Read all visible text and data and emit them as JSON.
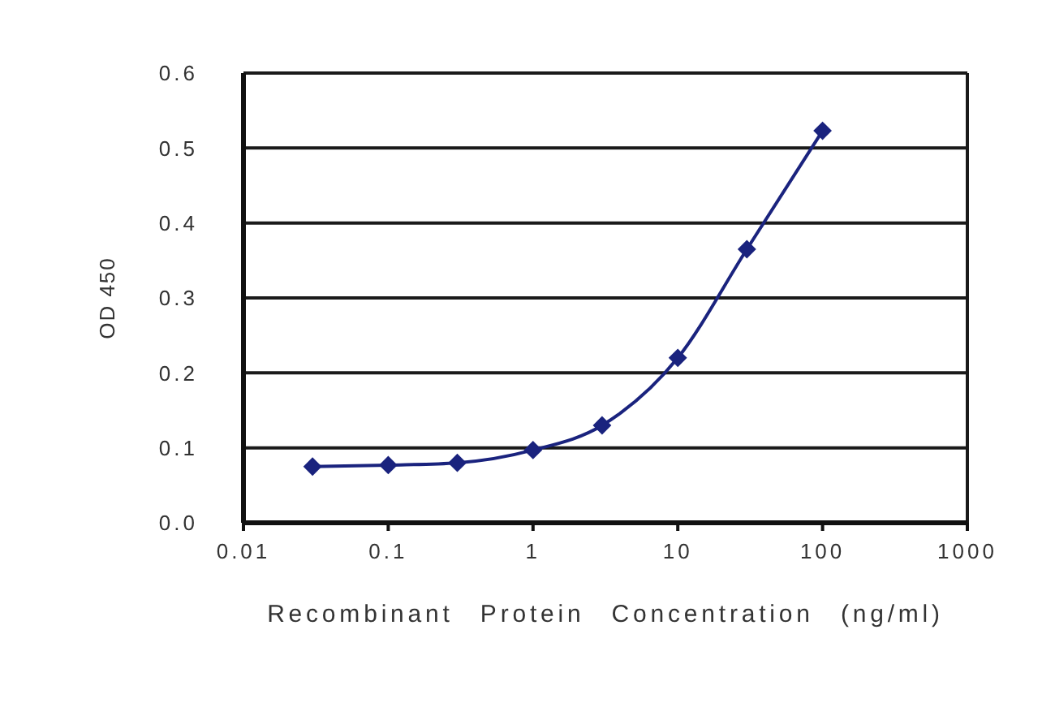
{
  "chart_data": {
    "type": "line",
    "xlabel": "Recombinant Protein Concentration (ng/ml)",
    "ylabel": "OD 450",
    "x": [
      0.03,
      0.1,
      0.3,
      1,
      3,
      10,
      30,
      100
    ],
    "series": [
      {
        "color": "#1a237e",
        "values": [
          0.075,
          0.077,
          0.08,
          0.097,
          0.13,
          0.22,
          0.365,
          0.523
        ]
      }
    ],
    "log": "x",
    "xlim": [
      0.01,
      1000
    ],
    "xticks": [
      0.01,
      0.1,
      1,
      10,
      100,
      1000
    ],
    "ylim": [
      0,
      0.6
    ],
    "yticks": [
      {
        "value": 0,
        "label": "0.0"
      },
      0.1,
      0.2,
      0.3,
      0.4,
      0.5,
      0.6
    ],
    "grid": "y",
    "marker": "diamond",
    "line_style": "solid"
  }
}
